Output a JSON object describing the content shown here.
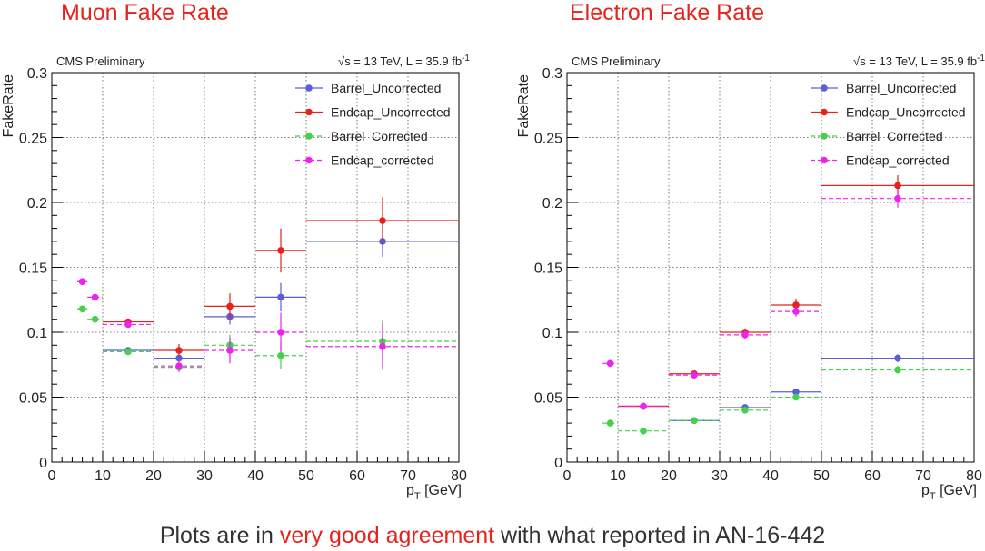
{
  "slide": {
    "left_title": "Muon Fake Rate",
    "right_title": "Electron Fake Rate",
    "caption_before": "Plots are in ",
    "caption_highlight": "very good agreement",
    "caption_after": " with what reported in AN-16-442"
  },
  "chart_data": [
    {
      "type": "scatter",
      "title": "Muon Fake Rate",
      "label_left": "CMS Preliminary",
      "label_right_sqrt": "√",
      "label_right": "s = 13 TeV, L = 35.9 fb",
      "label_right_sup": "-1",
      "xlabel_main": "p",
      "xlabel_sub": "T",
      "xlabel_unit": " [GeV]",
      "ylabel": "FakeRate",
      "xlim": [
        0,
        80
      ],
      "ylim": [
        0,
        0.3
      ],
      "xticks": [
        0,
        10,
        20,
        30,
        40,
        50,
        60,
        70,
        80
      ],
      "yticks": [
        0,
        0.05,
        0.1,
        0.15,
        0.2,
        0.25,
        0.3
      ],
      "ytick_labels": [
        "0",
        "0.05",
        "0.1",
        "0.15",
        "0.2",
        "0.25",
        "0.3"
      ],
      "grid": true,
      "legend_position": "top-right",
      "series": [
        {
          "name": "Barrel_Uncorrected",
          "color": "#5b5fd6",
          "dashed": false,
          "points": [
            {
              "x": 15,
              "y": 0.086,
              "xlo": 10,
              "xhi": 20,
              "err": 0.002
            },
            {
              "x": 25,
              "y": 0.08,
              "xlo": 20,
              "xhi": 30,
              "err": 0.003
            },
            {
              "x": 35,
              "y": 0.112,
              "xlo": 30,
              "xhi": 40,
              "err": 0.006
            },
            {
              "x": 45,
              "y": 0.127,
              "xlo": 40,
              "xhi": 50,
              "err": 0.011
            },
            {
              "x": 65,
              "y": 0.17,
              "xlo": 50,
              "xhi": 80,
              "err": 0.012
            }
          ]
        },
        {
          "name": "Endcap_Uncorrected",
          "color": "#e8221b",
          "dashed": false,
          "points": [
            {
              "x": 15,
              "y": 0.108,
              "xlo": 10,
              "xhi": 20,
              "err": 0.002
            },
            {
              "x": 25,
              "y": 0.086,
              "xlo": 20,
              "xhi": 30,
              "err": 0.005
            },
            {
              "x": 35,
              "y": 0.12,
              "xlo": 30,
              "xhi": 40,
              "err": 0.01
            },
            {
              "x": 45,
              "y": 0.163,
              "xlo": 40,
              "xhi": 50,
              "err": 0.017
            },
            {
              "x": 65,
              "y": 0.186,
              "xlo": 50,
              "xhi": 80,
              "err": 0.018
            }
          ]
        },
        {
          "name": "Barrel_Corrected",
          "color": "#45d14a",
          "dashed": true,
          "points": [
            {
              "x": 6,
              "y": 0.118,
              "xlo": 5,
              "xhi": 7,
              "err": 0.002
            },
            {
              "x": 8.5,
              "y": 0.11,
              "xlo": 7,
              "xhi": 10,
              "err": 0.002
            },
            {
              "x": 15,
              "y": 0.085,
              "xlo": 10,
              "xhi": 20,
              "err": 0.002
            },
            {
              "x": 25,
              "y": 0.073,
              "xlo": 20,
              "xhi": 30,
              "err": 0.004
            },
            {
              "x": 35,
              "y": 0.09,
              "xlo": 30,
              "xhi": 40,
              "err": 0.008
            },
            {
              "x": 45,
              "y": 0.082,
              "xlo": 40,
              "xhi": 50,
              "err": 0.01
            },
            {
              "x": 65,
              "y": 0.093,
              "xlo": 50,
              "xhi": 80,
              "err": 0.016
            }
          ]
        },
        {
          "name": "Endcap_corrected",
          "color": "#ee22ee",
          "dashed": true,
          "points": [
            {
              "x": 6,
              "y": 0.139,
              "xlo": 5,
              "xhi": 7,
              "err": 0.002
            },
            {
              "x": 8.5,
              "y": 0.127,
              "xlo": 7,
              "xhi": 10,
              "err": 0.002
            },
            {
              "x": 15,
              "y": 0.106,
              "xlo": 10,
              "xhi": 20,
              "err": 0.002
            },
            {
              "x": 25,
              "y": 0.074,
              "xlo": 20,
              "xhi": 30,
              "err": 0.004
            },
            {
              "x": 35,
              "y": 0.086,
              "xlo": 30,
              "xhi": 40,
              "err": 0.01
            },
            {
              "x": 45,
              "y": 0.1,
              "xlo": 40,
              "xhi": 50,
              "err": 0.015
            },
            {
              "x": 65,
              "y": 0.089,
              "xlo": 50,
              "xhi": 80,
              "err": 0.018
            }
          ]
        }
      ]
    },
    {
      "type": "scatter",
      "title": "Electron Fake Rate",
      "label_left": "CMS Preliminary",
      "label_right_sqrt": "√",
      "label_right": "s = 13 TeV, L = 35.9 fb",
      "label_right_sup": "-1",
      "xlabel_main": "p",
      "xlabel_sub": "T",
      "xlabel_unit": " [GeV]",
      "ylabel": "FakeRate",
      "xlim": [
        0,
        80
      ],
      "ylim": [
        0,
        0.3
      ],
      "xticks": [
        0,
        10,
        20,
        30,
        40,
        50,
        60,
        70,
        80
      ],
      "yticks": [
        0,
        0.05,
        0.1,
        0.15,
        0.2,
        0.25,
        0.3
      ],
      "ytick_labels": [
        "0",
        "0.05",
        "0.1",
        "0.15",
        "0.2",
        "0.25",
        "0.3"
      ],
      "grid": true,
      "legend_position": "top-right",
      "series": [
        {
          "name": "Barrel_Uncorrected",
          "color": "#5b5fd6",
          "dashed": false,
          "points": [
            {
              "x": 15,
              "y": 0.043,
              "xlo": 10,
              "xhi": 20,
              "err": 0.001
            },
            {
              "x": 25,
              "y": 0.032,
              "xlo": 20,
              "xhi": 30,
              "err": 0.001
            },
            {
              "x": 35,
              "y": 0.042,
              "xlo": 30,
              "xhi": 40,
              "err": 0.001
            },
            {
              "x": 45,
              "y": 0.054,
              "xlo": 40,
              "xhi": 50,
              "err": 0.002
            },
            {
              "x": 65,
              "y": 0.08,
              "xlo": 50,
              "xhi": 80,
              "err": 0.003
            }
          ]
        },
        {
          "name": "Endcap_Uncorrected",
          "color": "#e8221b",
          "dashed": false,
          "points": [
            {
              "x": 15,
              "y": 0.043,
              "xlo": 10,
              "xhi": 20,
              "err": 0.001
            },
            {
              "x": 25,
              "y": 0.068,
              "xlo": 20,
              "xhi": 30,
              "err": 0.002
            },
            {
              "x": 35,
              "y": 0.1,
              "xlo": 30,
              "xhi": 40,
              "err": 0.003
            },
            {
              "x": 45,
              "y": 0.121,
              "xlo": 40,
              "xhi": 50,
              "err": 0.005
            },
            {
              "x": 65,
              "y": 0.213,
              "xlo": 50,
              "xhi": 80,
              "err": 0.008
            }
          ]
        },
        {
          "name": "Barrel_Corrected",
          "color": "#45d14a",
          "dashed": true,
          "points": [
            {
              "x": 8.5,
              "y": 0.03,
              "xlo": 7,
              "xhi": 10,
              "err": 0.001
            },
            {
              "x": 15,
              "y": 0.024,
              "xlo": 10,
              "xhi": 20,
              "err": 0.001
            },
            {
              "x": 25,
              "y": 0.032,
              "xlo": 20,
              "xhi": 30,
              "err": 0.001
            },
            {
              "x": 35,
              "y": 0.04,
              "xlo": 30,
              "xhi": 40,
              "err": 0.001
            },
            {
              "x": 45,
              "y": 0.05,
              "xlo": 40,
              "xhi": 50,
              "err": 0.002
            },
            {
              "x": 65,
              "y": 0.071,
              "xlo": 50,
              "xhi": 80,
              "err": 0.003
            }
          ]
        },
        {
          "name": "Endcap_corrected",
          "color": "#ee22ee",
          "dashed": true,
          "points": [
            {
              "x": 8.5,
              "y": 0.076,
              "xlo": 7,
              "xhi": 10,
              "err": 0.002
            },
            {
              "x": 15,
              "y": 0.043,
              "xlo": 10,
              "xhi": 20,
              "err": 0.001
            },
            {
              "x": 25,
              "y": 0.067,
              "xlo": 20,
              "xhi": 30,
              "err": 0.002
            },
            {
              "x": 35,
              "y": 0.098,
              "xlo": 30,
              "xhi": 40,
              "err": 0.003
            },
            {
              "x": 45,
              "y": 0.116,
              "xlo": 40,
              "xhi": 50,
              "err": 0.004
            },
            {
              "x": 65,
              "y": 0.203,
              "xlo": 50,
              "xhi": 80,
              "err": 0.007
            }
          ]
        }
      ]
    }
  ]
}
